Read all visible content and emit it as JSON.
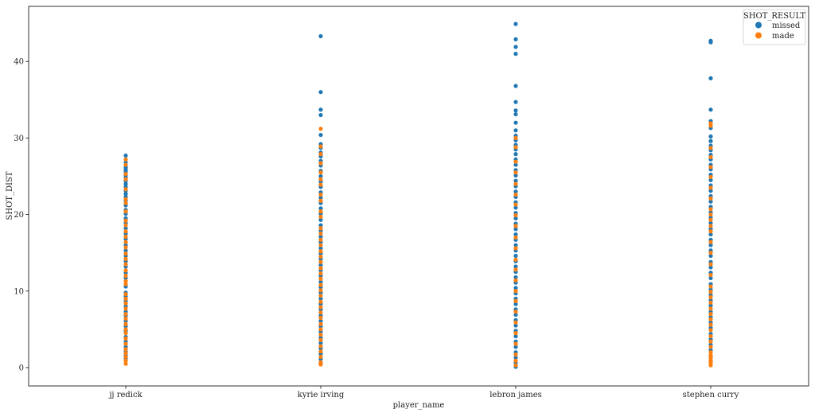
{
  "chart_data": {
    "type": "scatter",
    "subtype": "strip",
    "xlabel": "player_name",
    "ylabel": "SHOT_DIST",
    "categories": [
      "jj redick",
      "kyrie irving",
      "lebron james",
      "stephen curry"
    ],
    "ylim": [
      -2.4,
      47.2
    ],
    "yticks": [
      0,
      10,
      20,
      30,
      40
    ],
    "grid": false,
    "legend": {
      "title": "SHOT_RESULT",
      "placement": "top-right",
      "entries": [
        {
          "label": "missed",
          "color": "#1f77b4"
        },
        {
          "label": "made",
          "color": "#ff7f0e"
        }
      ]
    },
    "series": [
      {
        "name": "missed",
        "color": "#1f77b4",
        "points": {
          "jj redick": [
            27.7,
            26.8,
            26.2,
            25.9,
            25.6,
            25.1,
            24.8,
            24.4,
            24.0,
            23.6,
            23.1,
            22.7,
            22.3,
            21.8,
            21.2,
            20.6,
            20.1,
            19.5,
            18.9,
            18.2,
            17.5,
            16.8,
            16.0,
            15.3,
            14.6,
            13.9,
            13.2,
            12.4,
            11.7,
            10.6,
            9.8,
            9.3,
            8.7,
            8.0,
            7.3,
            6.8,
            6.1,
            5.4,
            4.8,
            4.0,
            3.4,
            2.7,
            2.1,
            1.6,
            1.2
          ],
          "kyrie irving": [
            43.3,
            36.0,
            33.7,
            33.0,
            30.4,
            29.2,
            28.7,
            28.1,
            27.6,
            27.0,
            26.4,
            25.7,
            25.0,
            24.3,
            23.6,
            22.9,
            22.2,
            21.5,
            20.8,
            20.1,
            19.3,
            18.6,
            17.9,
            17.1,
            16.4,
            15.6,
            14.9,
            14.2,
            13.4,
            12.7,
            12.0,
            11.2,
            10.5,
            9.8,
            9.0,
            8.3,
            7.6,
            6.8,
            6.1,
            5.4,
            4.7,
            3.9,
            3.2,
            2.5,
            1.8,
            1.1,
            0.5
          ],
          "lebron james": [
            44.9,
            42.9,
            41.9,
            41.0,
            36.8,
            34.7,
            33.6,
            33.1,
            32.0,
            31.0,
            30.3,
            29.7,
            29.1,
            28.5,
            27.9,
            27.2,
            26.5,
            25.8,
            25.1,
            24.4,
            23.7,
            23.0,
            22.3,
            21.6,
            20.9,
            20.2,
            19.5,
            18.8,
            18.1,
            17.4,
            16.7,
            16.0,
            15.3,
            14.6,
            13.9,
            13.2,
            12.5,
            11.8,
            11.1,
            10.4,
            9.7,
            9.0,
            8.3,
            7.6,
            6.9,
            6.2,
            5.5,
            4.8,
            4.1,
            3.4,
            2.7,
            2.0,
            1.3,
            0.6,
            0.1
          ],
          "stephen curry": [
            42.7,
            42.5,
            37.8,
            33.7,
            32.2,
            31.3,
            30.2,
            29.6,
            29.0,
            28.4,
            27.8,
            27.2,
            26.5,
            25.9,
            25.2,
            24.5,
            23.8,
            23.1,
            22.4,
            21.7,
            21.0,
            20.3,
            19.6,
            18.9,
            18.1,
            17.4,
            16.7,
            16.0,
            15.3,
            14.6,
            13.8,
            13.1,
            12.4,
            11.7,
            10.9,
            10.2,
            9.5,
            8.8,
            8.1,
            7.3,
            6.6,
            5.9,
            5.2,
            4.4,
            3.7,
            3.0,
            2.3,
            1.5,
            0.8
          ]
        }
      },
      {
        "name": "made",
        "color": "#ff7f0e",
        "points": {
          "jj redick": [
            27.2,
            26.5,
            25.3,
            24.6,
            23.3,
            22.0,
            21.5,
            20.4,
            19.2,
            18.6,
            17.8,
            17.1,
            16.4,
            15.7,
            14.9,
            14.2,
            13.5,
            12.7,
            12.0,
            11.3,
            10.9,
            9.6,
            9.0,
            8.4,
            7.7,
            7.0,
            6.4,
            5.7,
            5.0,
            4.5,
            3.8,
            3.1,
            2.4,
            1.9,
            1.4,
            0.9,
            0.5
          ],
          "kyrie irving": [
            31.2,
            28.9,
            27.9,
            26.7,
            25.5,
            24.6,
            23.9,
            22.6,
            21.8,
            20.4,
            19.7,
            18.2,
            17.5,
            16.7,
            16.0,
            15.2,
            14.5,
            13.8,
            13.0,
            12.3,
            11.6,
            10.8,
            10.1,
            9.4,
            8.6,
            7.9,
            7.2,
            6.5,
            5.7,
            5.0,
            4.3,
            3.6,
            2.8,
            2.1,
            1.4,
            0.7,
            0.4
          ],
          "lebron james": [
            30.0,
            28.8,
            26.9,
            25.5,
            24.0,
            22.6,
            21.3,
            19.9,
            18.5,
            17.0,
            15.6,
            14.1,
            12.8,
            11.4,
            10.0,
            8.7,
            7.3,
            5.9,
            4.5,
            3.1,
            1.7,
            0.9,
            0.3
          ],
          "stephen curry": [
            31.9,
            31.6,
            28.7,
            27.5,
            26.2,
            24.9,
            23.5,
            22.1,
            20.7,
            20.0,
            19.3,
            18.5,
            17.8,
            16.4,
            15.0,
            13.5,
            12.1,
            10.6,
            9.9,
            9.2,
            8.5,
            7.7,
            7.0,
            6.3,
            5.6,
            4.9,
            4.1,
            3.4,
            2.7,
            2.0,
            1.6,
            1.2,
            0.9,
            0.6,
            0.3
          ]
        }
      }
    ]
  }
}
